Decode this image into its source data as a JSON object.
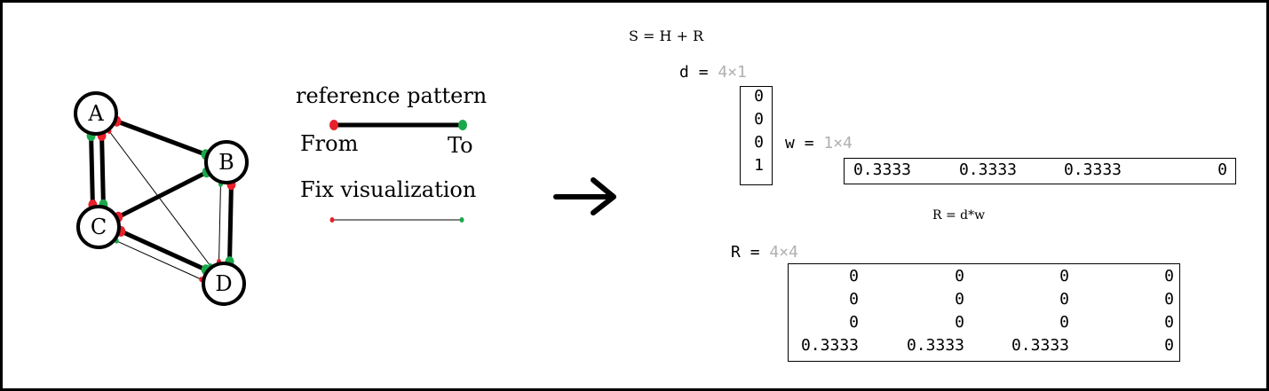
{
  "graph": {
    "nodes": [
      {
        "id": "A",
        "label": "A"
      },
      {
        "id": "B",
        "label": "B"
      },
      {
        "id": "C",
        "label": "C"
      },
      {
        "id": "D",
        "label": "D"
      }
    ],
    "edges": [
      {
        "from": "A",
        "to": "B",
        "weight": "thick"
      },
      {
        "from": "A",
        "to": "C",
        "weight": "thick"
      },
      {
        "from": "C",
        "to": "A",
        "weight": "thick"
      },
      {
        "from": "C",
        "to": "B",
        "weight": "thick"
      },
      {
        "from": "C",
        "to": "D",
        "weight": "thick"
      },
      {
        "from": "B",
        "to": "D",
        "weight": "thick"
      },
      {
        "from": "A",
        "to": "D",
        "weight": "thin"
      },
      {
        "from": "D",
        "to": "C",
        "weight": "thin"
      },
      {
        "from": "D",
        "to": "B",
        "weight": "thin"
      }
    ],
    "colors": {
      "from": "#e8202a",
      "to": "#1aa84a",
      "line": "#000000"
    }
  },
  "legend": {
    "title": "reference pattern",
    "from_label": "From",
    "to_label": "To",
    "fix_title": "Fix visualization"
  },
  "arrow": "→",
  "equations": {
    "s_eq": "S = H + R",
    "r_eq": "R = d*w"
  },
  "d": {
    "name": "d",
    "eq": "=",
    "size": "4×1",
    "values": [
      "0",
      "0",
      "0",
      "1"
    ]
  },
  "w": {
    "name": "w",
    "eq": "=",
    "size": "1×4",
    "values": [
      "0.3333",
      "0.3333",
      "0.3333",
      "0"
    ]
  },
  "R": {
    "name": "R",
    "eq": "=",
    "size": "4×4",
    "rows": [
      [
        "0",
        "0",
        "0",
        "0"
      ],
      [
        "0",
        "0",
        "0",
        "0"
      ],
      [
        "0",
        "0",
        "0",
        "0"
      ],
      [
        "0.3333",
        "0.3333",
        "0.3333",
        "0"
      ]
    ]
  }
}
